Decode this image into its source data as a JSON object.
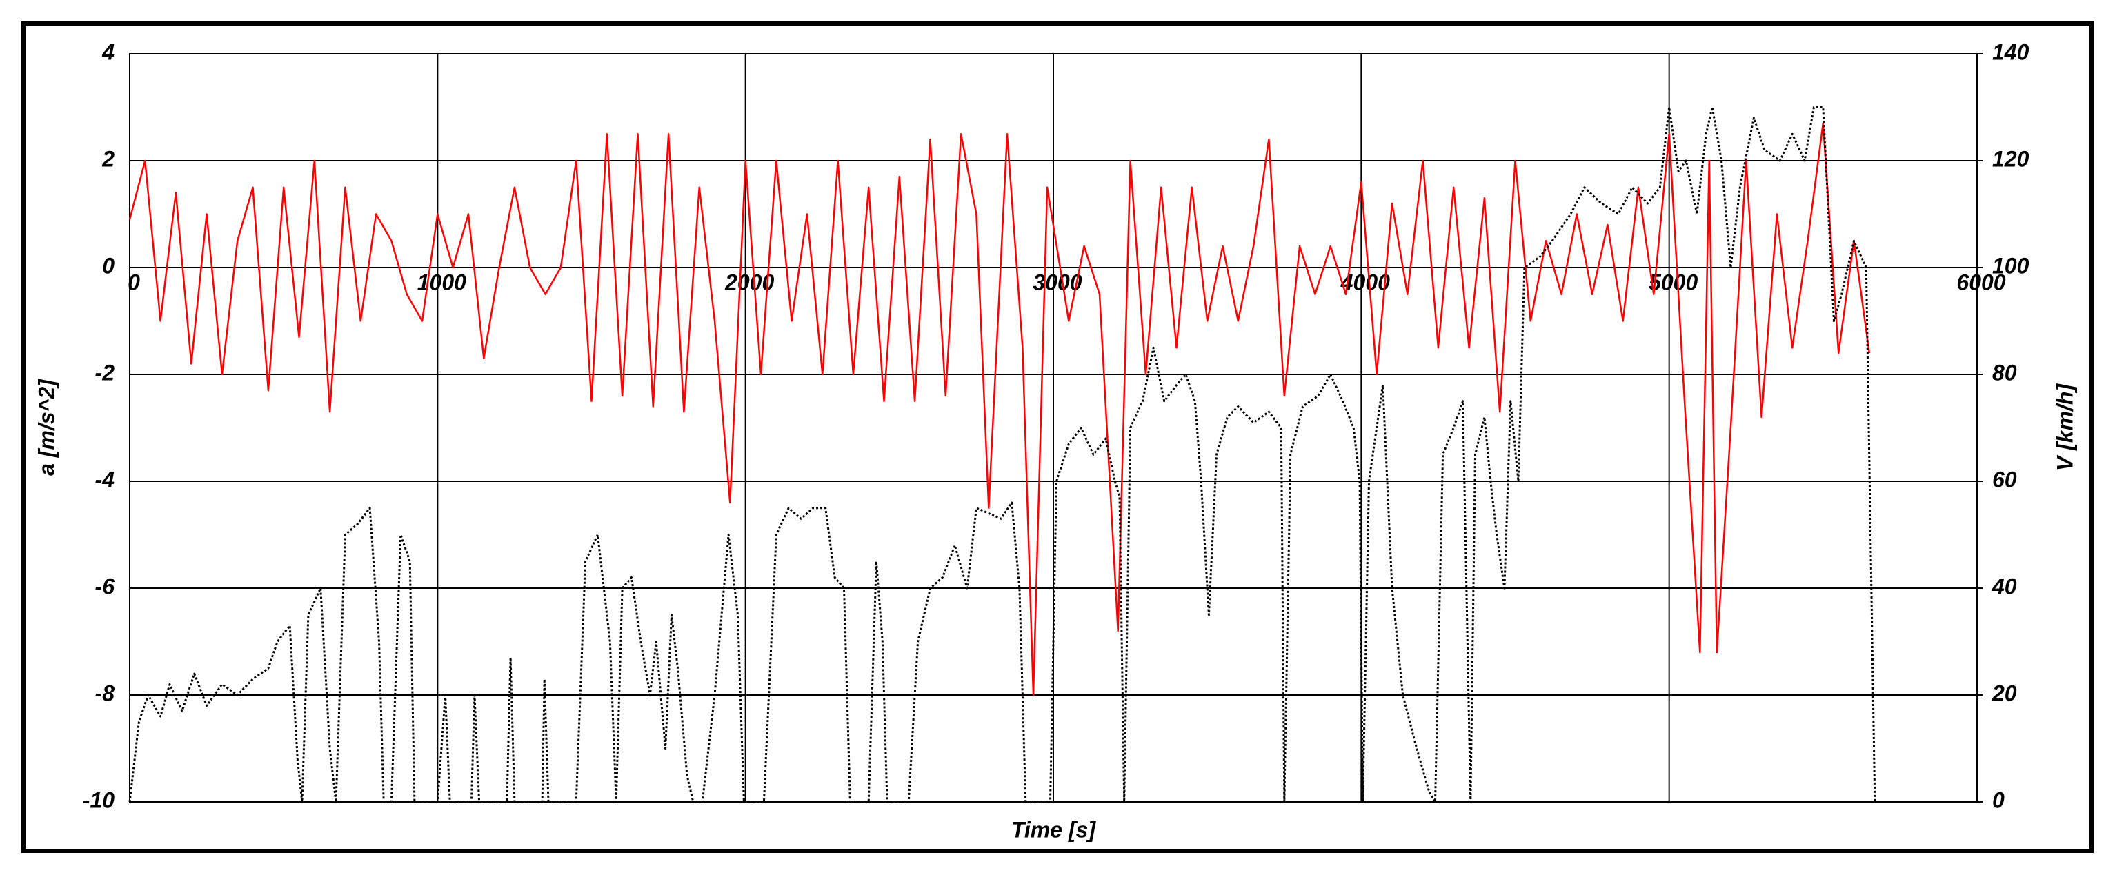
{
  "chart_data": {
    "type": "line",
    "x_label": "Time [s]",
    "y_label": "a [m/s^2]",
    "y2_label": "V [km/h]",
    "xlim": [
      0,
      6000
    ],
    "xticks": [
      0,
      1000,
      2000,
      3000,
      4000,
      5000,
      6000
    ],
    "ylim": [
      -10,
      4
    ],
    "yticks": [
      -10,
      -8,
      -6,
      -4,
      -2,
      0,
      2,
      4
    ],
    "y2lim": [
      0,
      140
    ],
    "y2ticks": [
      0,
      20,
      40,
      60,
      80,
      100,
      120,
      140
    ],
    "grid": true,
    "series": [
      {
        "color": "#ff0000",
        "style": "solid",
        "x": [
          0,
          50,
          100,
          150,
          200,
          250,
          300,
          350,
          400,
          450,
          500,
          550,
          600,
          650,
          700,
          750,
          800,
          850,
          900,
          950,
          1000,
          1050,
          1100,
          1150,
          1200,
          1250,
          1300,
          1350,
          1400,
          1450,
          1500,
          1550,
          1600,
          1650,
          1700,
          1750,
          1800,
          1850,
          1900,
          1950,
          2000,
          2050,
          2100,
          2150,
          2200,
          2250,
          2300,
          2350,
          2400,
          2450,
          2500,
          2550,
          2600,
          2650,
          2700,
          2750,
          2790,
          2850,
          2900,
          2935,
          2980,
          3050,
          3100,
          3150,
          3210,
          3250,
          3300,
          3350,
          3400,
          3450,
          3500,
          3550,
          3600,
          3650,
          3700,
          3750,
          3800,
          3850,
          3900,
          3950,
          4000,
          4050,
          4100,
          4150,
          4200,
          4250,
          4300,
          4350,
          4400,
          4450,
          4500,
          4550,
          4600,
          4650,
          4700,
          4750,
          4800,
          4850,
          4900,
          4950,
          5000,
          5050,
          5100,
          5130,
          5155,
          5200,
          5250,
          5300,
          5350,
          5400,
          5450,
          5500,
          5550,
          5600,
          5650
        ],
        "values": [
          0.9,
          2.0,
          -1.0,
          1.4,
          -1.8,
          1.0,
          -2.0,
          0.5,
          1.5,
          -2.3,
          1.5,
          -1.3,
          2.0,
          -2.7,
          1.5,
          -1.0,
          1.0,
          0.5,
          -0.5,
          -1.0,
          1.0,
          0,
          1.0,
          -1.7,
          0,
          1.5,
          0,
          -0.5,
          0,
          2.0,
          -2.5,
          2.5,
          -2.4,
          2.5,
          -2.6,
          2.5,
          -2.7,
          1.5,
          -1.0,
          -4.4,
          2.0,
          -2.0,
          2.0,
          -1.0,
          1.0,
          -2.0,
          2.0,
          -2.0,
          1.5,
          -2.5,
          1.7,
          -2.5,
          2.4,
          -2.4,
          2.5,
          1.0,
          -4.5,
          2.5,
          -1.5,
          -8.0,
          1.5,
          -1.0,
          0.4,
          -0.5,
          -6.8,
          2.0,
          -2.0,
          1.5,
          -1.5,
          1.5,
          -1.0,
          0.4,
          -1.0,
          0.4,
          2.4,
          -2.4,
          0.4,
          -0.5,
          0.4,
          -0.5,
          1.6,
          -2.0,
          1.2,
          -0.5,
          2.0,
          -1.5,
          1.5,
          -1.5,
          1.3,
          -2.7,
          2.0,
          -1.0,
          0.5,
          -0.5,
          1.0,
          -0.5,
          0.8,
          -1.0,
          1.5,
          -0.5,
          2.5,
          -2.5,
          -7.2,
          2.0,
          -7.2,
          -3.0,
          2.0,
          -2.8,
          1.0,
          -1.5,
          0.5,
          2.7,
          -1.6,
          0.5,
          -1.6
        ]
      },
      {
        "color": "#000000",
        "style": "dotted",
        "axis": "y2",
        "x": [
          0,
          30,
          60,
          100,
          130,
          170,
          210,
          250,
          300,
          350,
          400,
          450,
          480,
          520,
          545,
          560,
          580,
          620,
          650,
          670,
          700,
          740,
          780,
          810,
          825,
          850,
          880,
          910,
          925,
          1000,
          1025,
          1040,
          1110,
          1120,
          1135,
          1225,
          1237,
          1250,
          1340,
          1347,
          1360,
          1450,
          1480,
          1520,
          1560,
          1580,
          1600,
          1630,
          1660,
          1690,
          1710,
          1740,
          1760,
          1780,
          1810,
          1830,
          1860,
          1900,
          1945,
          1975,
          1995,
          2060,
          2100,
          2140,
          2180,
          2220,
          2260,
          2290,
          2320,
          2340,
          2400,
          2425,
          2445,
          2460,
          2530,
          2560,
          2600,
          2640,
          2680,
          2720,
          2750,
          2790,
          2830,
          2865,
          2890,
          2910,
          2960,
          2990,
          3010,
          3050,
          3090,
          3130,
          3170,
          3200,
          3215,
          3230,
          3250,
          3290,
          3325,
          3360,
          3400,
          3430,
          3460,
          3480,
          3505,
          3530,
          3565,
          3600,
          3650,
          3700,
          3740,
          3750,
          3770,
          3810,
          3860,
          3900,
          3940,
          3975,
          3995,
          4005,
          4025,
          4070,
          4100,
          4135,
          4180,
          4220,
          4240,
          4265,
          4300,
          4330,
          4355,
          4370,
          4400,
          4420,
          4440,
          4465,
          4485,
          4510,
          4530,
          4580,
          4620,
          4680,
          4725,
          4780,
          4835,
          4880,
          4930,
          4970,
          5000,
          5030,
          5055,
          5090,
          5120,
          5140,
          5170,
          5200,
          5230,
          5275,
          5310,
          5360,
          5400,
          5440,
          5470,
          5500,
          5535,
          5560,
          5600,
          5640,
          5668
        ],
        "values": [
          0,
          15,
          20,
          16,
          22,
          17,
          24,
          18,
          22,
          20,
          23,
          25,
          30,
          33,
          8,
          0,
          35,
          40,
          10,
          0,
          50,
          52,
          55,
          30,
          0,
          0,
          50,
          45,
          0,
          0,
          20,
          0,
          0,
          20,
          0,
          0,
          27,
          0,
          0,
          23,
          0,
          0,
          45,
          50,
          30,
          0,
          40,
          42,
          30,
          20,
          30,
          10,
          35,
          25,
          5,
          0,
          0,
          20,
          50,
          35,
          0,
          0,
          50,
          55,
          53,
          55,
          55,
          42,
          40,
          0,
          0,
          45,
          30,
          0,
          0,
          30,
          40,
          42,
          48,
          40,
          55,
          54,
          53,
          56,
          40,
          0,
          0,
          0,
          60,
          67,
          70,
          65,
          68,
          60,
          57,
          0,
          70,
          75,
          85,
          75,
          78,
          80,
          75,
          60,
          35,
          65,
          72,
          74,
          71,
          73,
          70,
          0,
          65,
          74,
          76,
          80,
          75,
          70,
          60,
          0,
          60,
          78,
          40,
          20,
          10,
          2,
          0,
          65,
          70,
          75,
          0,
          65,
          72,
          60,
          50,
          40,
          75,
          60,
          100,
          102,
          105,
          110,
          115,
          112,
          110,
          115,
          112,
          115,
          130,
          118,
          120,
          110,
          125,
          130,
          120,
          100,
          115,
          128,
          122,
          120,
          125,
          120,
          130,
          130,
          90,
          95,
          105,
          100,
          0
        ]
      }
    ]
  }
}
